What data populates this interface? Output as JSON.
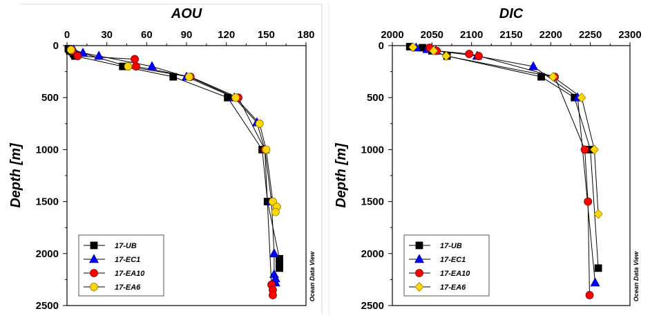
{
  "chart_data": [
    {
      "type": "scatter",
      "title": "AOU",
      "ylabel": "Depth [m]",
      "xlabel": "",
      "xlim": [
        0,
        180
      ],
      "ylim": [
        0,
        2500
      ],
      "y_reversed": true,
      "x_axis_position": "top",
      "xticks": [
        "0",
        "30",
        "60",
        "90",
        "120",
        "150",
        "180"
      ],
      "yticks": [
        "0",
        "500",
        "1000",
        "1500",
        "2000",
        "2500"
      ],
      "legend_position": "bottom-left",
      "watermark": "Ocean Data View",
      "series": [
        {
          "name": "17-UB",
          "marker": "square",
          "color": "#000000",
          "points": [
            [
              1,
              30
            ],
            [
              2,
              50
            ],
            [
              4,
              60
            ],
            [
              5,
              80
            ],
            [
              6,
              100
            ],
            [
              42,
              200
            ],
            [
              80,
              300
            ],
            [
              121,
              500
            ],
            [
              147,
              1000
            ],
            [
              151,
              1500
            ],
            [
              160,
              2050
            ],
            [
              160,
              2100
            ],
            [
              160,
              2140
            ]
          ]
        },
        {
          "name": "17-EC1",
          "marker": "triangle",
          "color": "#0000ff",
          "points": [
            [
              5,
              40
            ],
            [
              12,
              70
            ],
            [
              24,
              100
            ],
            [
              64,
              200
            ],
            [
              90,
              300
            ],
            [
              126,
              500
            ],
            [
              143,
              740
            ],
            [
              149,
              1000
            ],
            [
              154,
              1500
            ],
            [
              156,
              2000
            ],
            [
              156,
              2200
            ],
            [
              157,
              2240
            ],
            [
              157,
              2280
            ]
          ]
        },
        {
          "name": "17-EA10",
          "marker": "circle",
          "color": "#ff0000",
          "points": [
            [
              4,
              50
            ],
            [
              8,
              100
            ],
            [
              51,
              130
            ],
            [
              52,
              200
            ],
            [
              93,
              300
            ],
            [
              129,
              500
            ],
            [
              149,
              1000
            ],
            [
              154,
              2300
            ],
            [
              155,
              2350
            ],
            [
              155,
              2400
            ]
          ]
        },
        {
          "name": "17-EA6",
          "marker": "circle",
          "color": "#ffd700",
          "points": [
            [
              3,
              40
            ],
            [
              46,
              200
            ],
            [
              92,
              300
            ],
            [
              127,
              500
            ],
            [
              145,
              750
            ],
            [
              150,
              1000
            ],
            [
              155,
              1500
            ],
            [
              158,
              1550
            ],
            [
              157,
              1600
            ]
          ]
        }
      ]
    },
    {
      "type": "scatter",
      "title": "DIC",
      "ylabel": "Depth [m]",
      "xlabel": "",
      "xlim": [
        2000,
        2300
      ],
      "ylim": [
        0,
        2500
      ],
      "y_reversed": true,
      "x_axis_position": "top",
      "xticks": [
        "2000",
        "2050",
        "2100",
        "2150",
        "2200",
        "2250",
        "2300"
      ],
      "yticks": [
        "0",
        "500",
        "1000",
        "1500",
        "2000",
        "2500"
      ],
      "legend_position": "bottom-left",
      "watermark": "Ocean Data View",
      "series": [
        {
          "name": "17-UB",
          "marker": "square",
          "color": "#000000",
          "points": [
            [
              2022,
              10
            ],
            [
              2038,
              20
            ],
            [
              2050,
              50
            ],
            [
              2069,
              100
            ],
            [
              2188,
              300
            ],
            [
              2230,
              500
            ],
            [
              2250,
              1000
            ],
            [
              2260,
              2140
            ]
          ]
        },
        {
          "name": "17-EC1",
          "marker": "triangle",
          "color": "#0000ff",
          "points": [
            [
              2030,
              20
            ],
            [
              2044,
              35
            ],
            [
              2055,
              50
            ],
            [
              2107,
              100
            ],
            [
              2178,
              200
            ],
            [
              2234,
              500
            ],
            [
              2256,
              2280
            ]
          ]
        },
        {
          "name": "17-EA10",
          "marker": "circle",
          "color": "#ff0000",
          "points": [
            [
              2047,
              20
            ],
            [
              2056,
              50
            ],
            [
              2097,
              80
            ],
            [
              2109,
              100
            ],
            [
              2205,
              300
            ],
            [
              2243,
              1000
            ],
            [
              2247,
              1500
            ],
            [
              2249,
              2400
            ]
          ]
        },
        {
          "name": "17-EA6",
          "marker": "diamond",
          "color": "#ffd700",
          "points": [
            [
              2026,
              15
            ],
            [
              2052,
              50
            ],
            [
              2068,
              100
            ],
            [
              2203,
              300
            ],
            [
              2239,
              500
            ],
            [
              2255,
              1000
            ],
            [
              2260,
              1620
            ]
          ]
        }
      ]
    }
  ]
}
